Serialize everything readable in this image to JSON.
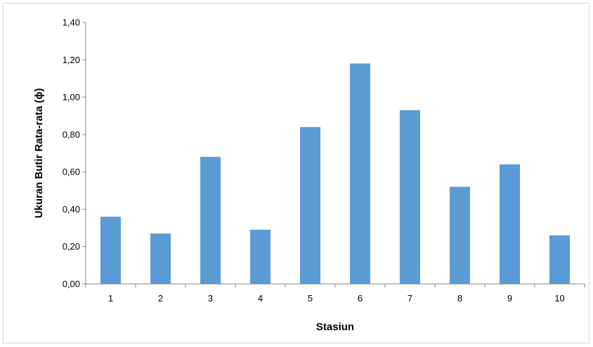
{
  "chart_data": {
    "type": "bar",
    "xlabel": "Stasiun",
    "ylabel": "Ukuran Butir Rata-rata (ϕ)",
    "categories": [
      "1",
      "2",
      "3",
      "4",
      "5",
      "6",
      "7",
      "8",
      "9",
      "10"
    ],
    "values": [
      0.36,
      0.27,
      0.68,
      0.29,
      0.84,
      1.18,
      0.93,
      0.52,
      0.64,
      0.26
    ],
    "ylim": [
      0,
      1.4
    ],
    "yticks": [
      "0,00",
      "0,20",
      "0,40",
      "0,60",
      "0,80",
      "1,00",
      "1,20",
      "1,40"
    ],
    "grid": false,
    "legend": "none",
    "bar_color": "#5b9bd5"
  }
}
